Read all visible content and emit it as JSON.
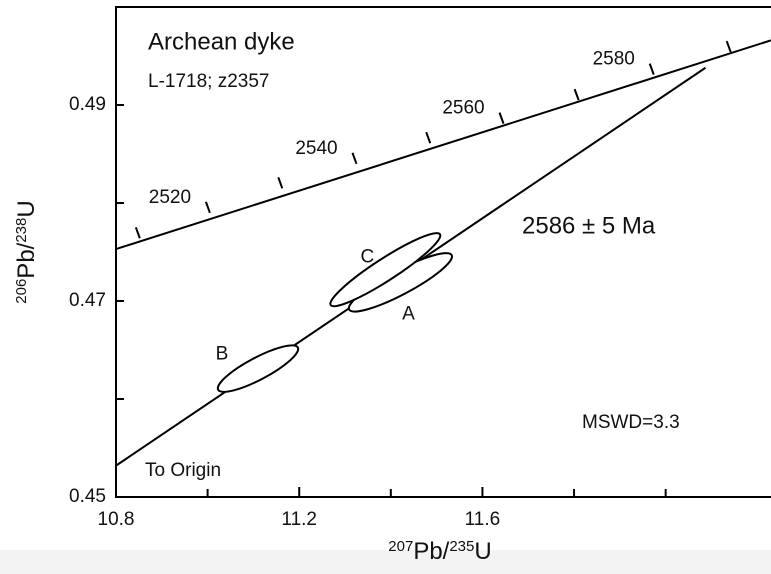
{
  "chart_data": {
    "type": "concordia",
    "title": "Archean dyke",
    "subtitle": "L-1718; z2357",
    "annotations": {
      "age": "2586 ± 5  Ma",
      "mswd": "MSWD=3.3",
      "origin": "To Origin"
    },
    "xlabel": {
      "mass1": "207",
      "el1": "Pb/",
      "mass2": "235",
      "el2": "U"
    },
    "ylabel": {
      "mass1": "206",
      "el1": "Pb/",
      "mass2": "238",
      "el2": "U"
    },
    "xlim": [
      10.8,
      12.23
    ],
    "ylim": [
      0.45,
      0.5
    ],
    "xticks": [
      10.8,
      11.2,
      11.6
    ],
    "xminor": [
      11.0,
      11.4,
      11.8,
      12.0
    ],
    "yticks": [
      0.45,
      0.47,
      0.49
    ],
    "yminor": [
      0.46,
      0.48
    ],
    "concordia_line": {
      "x": [
        10.8,
        12.23
      ],
      "y": [
        0.4753,
        0.4966
      ]
    },
    "concordia": {
      "ages": [
        2510,
        2520,
        2530,
        2540,
        2550,
        2560,
        2570,
        2580,
        2590
      ],
      "x": [
        10.852,
        11.005,
        11.163,
        11.325,
        11.486,
        11.646,
        11.81,
        11.974,
        12.142
      ],
      "y": [
        0.4764,
        0.479,
        0.4815,
        0.484,
        0.4861,
        0.4881,
        0.4905,
        0.4931,
        0.4954
      ],
      "labeled": [
        false,
        true,
        false,
        true,
        false,
        true,
        false,
        true,
        false
      ]
    },
    "discordia": {
      "x": [
        10.8,
        12.087
      ],
      "y": [
        0.4532,
        0.4938
      ]
    },
    "ellipses": [
      {
        "name": "A",
        "x": 11.421,
        "y": 0.4719,
        "sx": 0.1126,
        "sy": 0.00298,
        "rho": 0.886
      },
      {
        "name": "B",
        "x": 11.11,
        "y": 0.4631,
        "sx": 0.0877,
        "sy": 0.00237,
        "rho": 0.847
      },
      {
        "name": "C",
        "x": 11.388,
        "y": 0.4732,
        "sx": 0.12,
        "sy": 0.00373,
        "rho": 0.934
      }
    ],
    "color": "#000000"
  }
}
